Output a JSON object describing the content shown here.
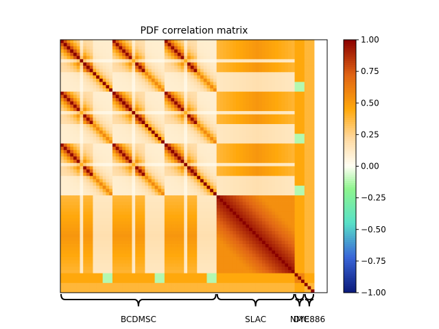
{
  "chart_data": {
    "type": "heatmap",
    "title": "PDF correlation matrix",
    "colormap": "blue - cyan - light green - white - orange - dark red (diverging)",
    "color_stops": [
      "#0b1a7a",
      "#3a66d8",
      "#58e0c8",
      "#8ef58e",
      "#fffef4",
      "#ffd9a0",
      "#ffa80c",
      "#e06414",
      "#8a0000"
    ],
    "vmin": -1.0,
    "vmax": 1.0,
    "colorbar_ticks": [
      "1.00",
      "0.75",
      "0.50",
      "0.25",
      "0.00",
      "−0.25",
      "−0.50",
      "−0.75",
      "−1.00"
    ],
    "groups": [
      {
        "name": "BCDMSC",
        "n_points": 48
      },
      {
        "name": "SLAC",
        "n_points": 24
      },
      {
        "name": "NMC",
        "n_points": 3
      },
      {
        "name": "DYE886",
        "n_points": 3
      }
    ],
    "extra_blank_columns": 4,
    "notes": "BCDMSC block has a 3x3 repeating sub-structure of 16-point sub-blocks; SLAC block is strongly positively correlated; small negative (green) correlations appear in BCDMSC/SLAC cross blocks near the NMC columns."
  }
}
